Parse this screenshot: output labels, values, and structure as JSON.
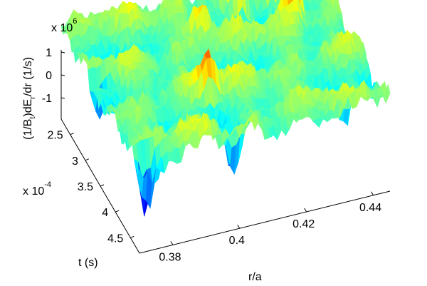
{
  "chart_data": {
    "type": "surface",
    "title": "",
    "xlabel": "r/a",
    "ylabel": "t (s)",
    "zlabel": "(1/B_t)dE_r/dr (1/s)",
    "zlabel_parts": {
      "a": "(1/B",
      "b": "t",
      "c": ")dE",
      "d": "r",
      "e": "/dr (1/s)"
    },
    "xlim": [
      0.37,
      0.445
    ],
    "ylim": [
      0.00022,
      0.00048
    ],
    "zlim": [
      -1500000,
      1500000
    ],
    "x_ticks": [
      0.38,
      0.4,
      0.42,
      0.44
    ],
    "x_tick_labels": [
      "0.38",
      "0.4",
      "0.42",
      "0.44"
    ],
    "y_ticks": [
      0.00025,
      0.0003,
      0.00035,
      0.0004,
      0.00045
    ],
    "y_tick_labels": [
      "2.5",
      "3",
      "3.5",
      "4",
      "4.5"
    ],
    "y_multiplier": {
      "base": "x 10",
      "exp": "-4"
    },
    "z_ticks": [
      -1000000,
      0,
      1000000
    ],
    "z_tick_labels": [
      "-1",
      "0",
      "1"
    ],
    "z_multiplier": {
      "base": "x 10",
      "exp": "6"
    },
    "colormap": "jet",
    "colormap_stops": [
      "#00008f",
      "#0000ff",
      "#00ffff",
      "#ffff00",
      "#ff0000",
      "#800000"
    ],
    "grid": "r/a × t",
    "peaks": [
      {
        "r": 0.398,
        "t": 0.000395,
        "z": 900000
      },
      {
        "r": 0.42,
        "t": 0.000255,
        "z": 1300000
      },
      {
        "r": 0.43,
        "t": 0.000255,
        "z": 1100000
      },
      {
        "r": 0.432,
        "t": 0.0003,
        "z": 1000000
      },
      {
        "r": 0.426,
        "t": 0.00023,
        "z": 900000
      },
      {
        "r": 0.406,
        "t": 0.000285,
        "z": 800000
      }
    ],
    "troughs": [
      {
        "r": 0.373,
        "t": 0.00047,
        "z": -1400000
      },
      {
        "r": 0.4,
        "t": 0.00046,
        "z": -1200000
      },
      {
        "r": 0.372,
        "t": 0.00032,
        "z": -1000000
      },
      {
        "r": 0.434,
        "t": 0.00045,
        "z": -900000
      }
    ]
  }
}
